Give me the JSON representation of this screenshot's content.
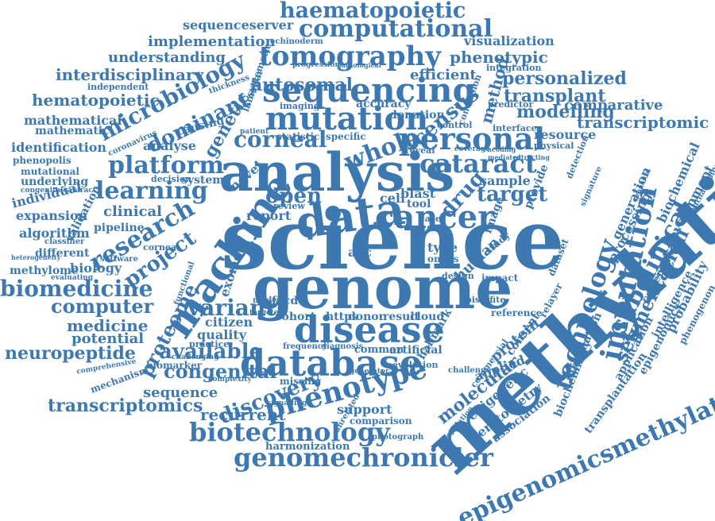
{
  "cloud": {
    "color": "#3d79b0",
    "words": [
      "science",
      "genome",
      "analysis",
      "methylation",
      "data",
      "machine",
      "cancer",
      "disease",
      "database",
      "sequencing",
      "mutation",
      "personal",
      "tomography",
      "computational",
      "haematopoietic",
      "phenotype",
      "genomechronicler",
      "biotechnology",
      "epigenomicsmethylation",
      "imputation",
      "technology",
      "subclinical",
      "segmentation",
      "cataract",
      "platform",
      "learning",
      "research",
      "microbiology",
      "dominant",
      "project",
      "proteome",
      "autosomal",
      "corneal",
      "whole",
      "census",
      "drug",
      "target",
      "open",
      "biomedicine",
      "computer",
      "variant",
      "discovery",
      "available",
      "congenital",
      "neuropeptide",
      "transcriptomics",
      "recurrent",
      "sequence",
      "medicine",
      "potential",
      "hematopoietic",
      "interdisciplinary",
      "understanding",
      "implementation",
      "sequenceserver",
      "visualization",
      "phenotypic",
      "personalized",
      "transplant",
      "modelling",
      "transcriptomic",
      "comparative",
      "resource",
      "efficient",
      "method",
      "genetic",
      "analyse",
      "identification",
      "mathematical",
      "mathematic",
      "phenopolis",
      "mutational",
      "underlying",
      "individual",
      "expansion",
      "algorithm",
      "different",
      "methylome",
      "biology",
      "clinical",
      "pipeline",
      "report",
      "novel",
      "exome",
      "citizen",
      "quality",
      "biomarker",
      "mechanism",
      "molecular",
      "epigenetic",
      "keratometry",
      "association",
      "human",
      "protein",
      "applied",
      "consent",
      "processing",
      "generation",
      "development",
      "biochemical",
      "coherence",
      "probability",
      "intelligence",
      "phenogenon",
      "application",
      "epigenomics",
      "information",
      "biochemistry",
      "transplantation",
      "support",
      "comparison",
      "harmonization",
      "sample",
      "image",
      "provide",
      "detection",
      "accuracy",
      "donation",
      "blast",
      "tool",
      "cell",
      "type",
      "omics",
      "acc",
      "donor",
      "result",
      "cloud",
      "https",
      "cohort",
      "fecd",
      "artificial",
      "common",
      "missing",
      "hallmark",
      "bisulfite",
      "reference",
      "dataset",
      "relayer",
      "integration",
      "predictor",
      "interface",
      "physical",
      "control",
      "conclusion",
      "imaging",
      "statistic",
      "specific",
      "review",
      "case",
      "study",
      "design",
      "impact",
      "system",
      "decision",
      "validation",
      "independent",
      "thickness",
      "lamellar",
      "systematic",
      "causing",
      "coronavirus",
      "congenitalcataract",
      "classifier",
      "heterogeneity",
      "evaluating",
      "software",
      "practice",
      "challenging",
      "comprehensive",
      "complexity",
      "targeted",
      "frequency",
      "diagnosis",
      "evolution",
      "challenge",
      "commercial",
      "population",
      "photograph",
      "unrelated",
      "generator",
      "signalling",
      "echinoderm",
      "progression",
      "pathological",
      "coverage",
      "encoding",
      "mediated",
      "extracting",
      "patient",
      "modern",
      "cornea",
      "functional",
      "reveal",
      "signature",
      "ophthalmology",
      "graphical"
    ]
  }
}
